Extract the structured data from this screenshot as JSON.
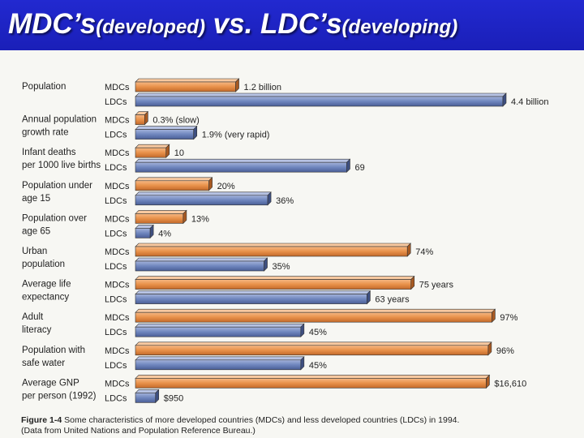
{
  "title": {
    "part1": "MDC’s",
    "part2": "(developed)",
    "part3": " vs. LDC’s",
    "part4": "(developing)"
  },
  "colors": {
    "title_bg": "#1b22c4",
    "mdc_bar": "#e8914a",
    "ldc_bar": "#6f86be",
    "page_bg": "#f7f7f3"
  },
  "chart_data": {
    "type": "bar",
    "orientation": "horizontal",
    "series_names": [
      "MDCs",
      "LDCs"
    ],
    "categories": [
      {
        "label": [
          "Population"
        ],
        "mdc_value": 1.2,
        "ldc_value": 4.4,
        "mdc_text": "1.2 billion",
        "ldc_text": "4.4 billion",
        "max": 4.4
      },
      {
        "label": [
          "Annual population",
          "growth rate"
        ],
        "mdc_value": 0.3,
        "ldc_value": 1.9,
        "mdc_text": "0.3% (slow)",
        "ldc_text": "1.9% (very rapid)",
        "max": 12
      },
      {
        "label": [
          "Infant deaths",
          "per 1000 live births"
        ],
        "mdc_value": 10,
        "ldc_value": 69,
        "mdc_text": "10",
        "ldc_text": "69",
        "max": 120
      },
      {
        "label": [
          "Population under",
          "age 15"
        ],
        "mdc_value": 20,
        "ldc_value": 36,
        "mdc_text": "20%",
        "ldc_text": "36%",
        "max": 100
      },
      {
        "label": [
          "Population over",
          "age 65"
        ],
        "mdc_value": 13,
        "ldc_value": 4,
        "mdc_text": "13%",
        "ldc_text": "4%",
        "max": 100
      },
      {
        "label": [
          "Urban",
          "population"
        ],
        "mdc_value": 74,
        "ldc_value": 35,
        "mdc_text": "74%",
        "ldc_text": "35%",
        "max": 100
      },
      {
        "label": [
          "Average life",
          "expectancy"
        ],
        "mdc_value": 75,
        "ldc_value": 63,
        "mdc_text": "75 years",
        "ldc_text": "63 years",
        "max": 100
      },
      {
        "label": [
          "Adult",
          "literacy"
        ],
        "mdc_value": 97,
        "ldc_value": 45,
        "mdc_text": "97%",
        "ldc_text": "45%",
        "max": 100
      },
      {
        "label": [
          "Population with",
          "safe water"
        ],
        "mdc_value": 96,
        "ldc_value": 45,
        "mdc_text": "96%",
        "ldc_text": "45%",
        "max": 100
      },
      {
        "label": [
          "Average GNP",
          "per person (1992)"
        ],
        "mdc_value": 16610,
        "ldc_value": 950,
        "mdc_text": "$16,610",
        "ldc_text": "$950",
        "max": 17400
      }
    ]
  },
  "caption": {
    "figure_label": "Figure 1-4",
    "text": " Some characteristics of more developed countries (MDCs) and less developed countries (LDCs) in 1994. (Data from United Nations and Population Reference Bureau.)"
  }
}
